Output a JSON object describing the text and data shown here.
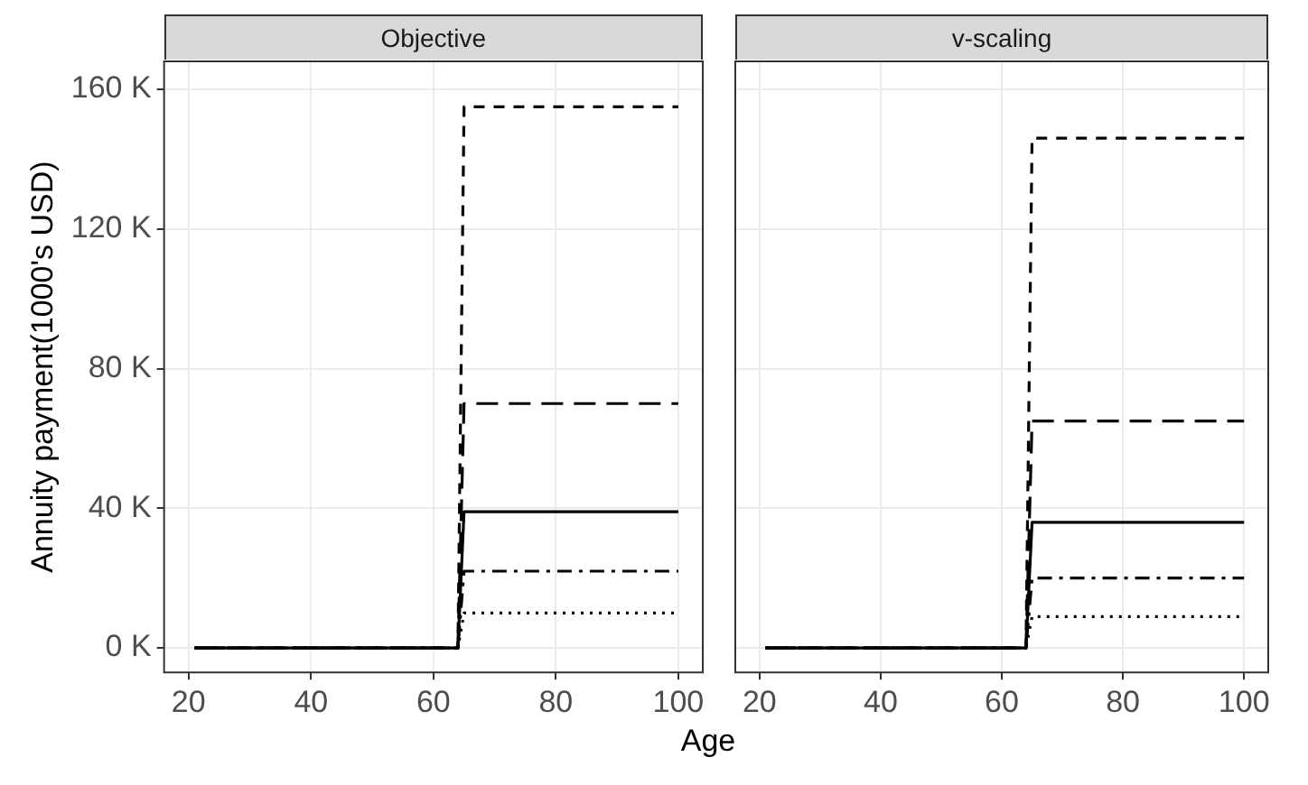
{
  "chart_data": [
    {
      "type": "line",
      "title": "Objective",
      "ylabel": "Annuity payment(1000's USD)",
      "xlabel": "Age",
      "xlim": [
        16,
        104
      ],
      "xticks": [
        20,
        40,
        60,
        80,
        100
      ],
      "ylim": [
        -7,
        168
      ],
      "yticks": [
        {
          "value": 0,
          "label": "0 K"
        },
        {
          "value": 40,
          "label": "40 K"
        },
        {
          "value": 80,
          "label": "80 K"
        },
        {
          "value": 120,
          "label": "120 K"
        },
        {
          "value": 160,
          "label": "160 K"
        }
      ],
      "grid": true,
      "legend": false,
      "series": [
        {
          "color": "#000000",
          "line_style": "dashed",
          "x": [
            21,
            64,
            65,
            100
          ],
          "values": [
            0,
            0,
            155,
            155
          ]
        },
        {
          "color": "#000000",
          "line_style": "longdash",
          "x": [
            21,
            64,
            65,
            100
          ],
          "values": [
            0,
            0,
            70,
            70
          ]
        },
        {
          "color": "#000000",
          "line_style": "solid",
          "x": [
            21,
            64,
            65,
            100
          ],
          "values": [
            0,
            0,
            39,
            39
          ]
        },
        {
          "color": "#000000",
          "line_style": "dotdash",
          "x": [
            21,
            64,
            65,
            100
          ],
          "values": [
            0,
            0,
            22,
            22
          ]
        },
        {
          "color": "#000000",
          "line_style": "dotted",
          "x": [
            21,
            64,
            65,
            100
          ],
          "values": [
            0,
            0,
            10,
            10
          ]
        }
      ]
    },
    {
      "type": "line",
      "title": "v-scaling",
      "xlim": [
        16,
        104
      ],
      "xticks": [
        20,
        40,
        60,
        80,
        100
      ],
      "ylim": [
        -7,
        168
      ],
      "yticks": [
        {
          "value": 0,
          "label": null
        },
        {
          "value": 40,
          "label": null
        },
        {
          "value": 80,
          "label": null
        },
        {
          "value": 120,
          "label": null
        },
        {
          "value": 160,
          "label": null
        }
      ],
      "grid": true,
      "legend": false,
      "tick_labels": "x",
      "series": [
        {
          "color": "#000000",
          "line_style": "dashed",
          "x": [
            21,
            64,
            65,
            100
          ],
          "values": [
            0,
            0,
            146,
            146
          ]
        },
        {
          "color": "#000000",
          "line_style": "longdash",
          "x": [
            21,
            64,
            65,
            100
          ],
          "values": [
            0,
            0,
            65,
            65
          ]
        },
        {
          "color": "#000000",
          "line_style": "solid",
          "x": [
            21,
            64,
            65,
            100
          ],
          "values": [
            0,
            0,
            36,
            36
          ]
        },
        {
          "color": "#000000",
          "line_style": "dotdash",
          "x": [
            21,
            64,
            65,
            100
          ],
          "values": [
            0,
            0,
            20,
            20
          ]
        },
        {
          "color": "#000000",
          "line_style": "dotted",
          "x": [
            21,
            64,
            65,
            100
          ],
          "values": [
            0,
            0,
            9,
            9
          ]
        }
      ]
    }
  ]
}
